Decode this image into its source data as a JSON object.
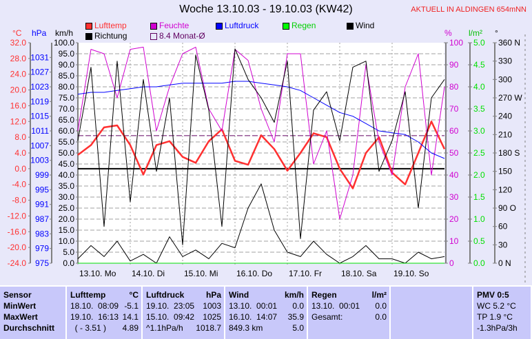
{
  "header": {
    "title": "Woche 13.10.03 - 19.10.03 (KW42)",
    "location": "AKTUELL IN ALDINGEN 654mNN"
  },
  "legend": [
    {
      "label": "Lufttemp",
      "color": "#ff3030"
    },
    {
      "label": "Feuchte",
      "color": "#d000d0"
    },
    {
      "label": "Luftdruck",
      "color": "#0000ff"
    },
    {
      "label": "Regen",
      "color": "#00ff00"
    },
    {
      "label": "Wind",
      "color": "#000000"
    },
    {
      "label": "Richtung",
      "color": "#000000"
    },
    {
      "label": "8.4 Monat-Ø",
      "color": "#600060"
    }
  ],
  "colors": {
    "temp": "#ff3030",
    "humidity": "#d000d0",
    "pressure": "#0000ff",
    "rain": "#00e000",
    "wind": "#000000",
    "grid": "#909090"
  },
  "chart_data": {
    "type": "line",
    "title": "Woche 13.10.03 - 19.10.03 (KW42)",
    "x_labels": [
      "13.10. Mo",
      "14.10. Di",
      "15.10. Mi",
      "16.10. Do",
      "17.10. Fr",
      "18.10. Sa",
      "19.10. So"
    ],
    "x_unit": "hours since 13.10. 00:00",
    "axes": {
      "temp": {
        "unit": "°C",
        "min": -24,
        "max": 32,
        "step": 4
      },
      "pressure": {
        "unit": "hPa",
        "min": 975,
        "max": 1035,
        "step": 4
      },
      "wind": {
        "unit": "km/h",
        "min": 0,
        "max": 100,
        "step": 5
      },
      "humidity": {
        "unit": "%",
        "min": 0,
        "max": 100,
        "step": 10
      },
      "rain": {
        "unit": "l/m²",
        "min": 0,
        "max": 5,
        "step": 0.5
      },
      "direction": {
        "unit": "°",
        "min": 0,
        "max": 360,
        "step": 30,
        "labels": {
          "360": "360 N",
          "270": "270 W",
          "180": "180 S",
          "90": "90  O",
          "0": "0   N"
        }
      }
    },
    "sample_interval_h": 6,
    "series": [
      {
        "name": "Lufttemp",
        "axis": "temp",
        "values": [
          3.5,
          6,
          10.5,
          11,
          6,
          -1.5,
          6,
          7,
          3,
          1.5,
          7,
          10,
          2,
          1,
          8.5,
          5,
          -0.5,
          4,
          9,
          8,
          0,
          -5,
          4,
          8,
          -1,
          -4,
          4,
          12,
          5
        ]
      },
      {
        "name": "Feuchte",
        "axis": "humidity",
        "values": [
          60,
          97,
          95,
          75,
          97,
          98,
          60,
          80,
          95,
          98,
          70,
          60,
          97,
          92,
          70,
          55,
          95,
          95,
          45,
          60,
          20,
          40,
          90,
          55,
          40,
          80,
          95,
          40,
          80
        ]
      },
      {
        "name": "Luftdruck",
        "axis": "pressure",
        "values": [
          1021,
          1021.5,
          1021.5,
          1022,
          1022.5,
          1023,
          1023,
          1023.5,
          1024,
          1024,
          1024,
          1024,
          1024.5,
          1024.5,
          1024,
          1023.5,
          1023,
          1022,
          1020,
          1018,
          1016,
          1015,
          1013,
          1011,
          1010.5,
          1010,
          1008,
          1005,
          1003.5
        ]
      },
      {
        "name": "Wind",
        "axis": "wind",
        "values": [
          2,
          8,
          3,
          10,
          1,
          4,
          0,
          12,
          3,
          6,
          2,
          9,
          7,
          25,
          36,
          15,
          5,
          3,
          10,
          4,
          0,
          3,
          8,
          2,
          2,
          0,
          5,
          2,
          3
        ]
      },
      {
        "name": "Richtung",
        "axis": "direction",
        "values": [
          200,
          320,
          60,
          330,
          100,
          300,
          150,
          270,
          30,
          340,
          250,
          60,
          350,
          300,
          270,
          230,
          330,
          40,
          250,
          280,
          200,
          320,
          330,
          150,
          200,
          280,
          90,
          270,
          300
        ]
      },
      {
        "name": "Regen",
        "axis": "rain",
        "values": [
          0,
          0,
          0,
          0,
          0,
          0,
          0,
          0,
          0,
          0,
          0,
          0,
          0,
          0,
          0,
          0,
          0,
          0,
          0,
          0,
          0,
          0,
          0,
          0,
          0,
          0,
          0,
          0,
          0
        ]
      }
    ],
    "reference_lines": [
      {
        "name": "8.4 Monat-Ø",
        "axis": "temp",
        "value": 8.4
      },
      {
        "name": "0 °C",
        "axis": "temp",
        "value": 0
      }
    ]
  },
  "table": {
    "columns": [
      {
        "h1": "Sensor",
        "h2": "",
        "rows": [
          [
            "MinWert",
            ""
          ],
          [
            "MaxWert",
            ""
          ],
          [
            "Durchschnitt",
            ""
          ]
        ]
      },
      {
        "h1": "Lufttemp",
        "h2": "°C",
        "rows": [
          [
            "18.10.  08:09",
            "-5.1"
          ],
          [
            "19.10.  16:13",
            "14.1"
          ],
          [
            "  ( - 3.51 )",
            "4.89"
          ]
        ]
      },
      {
        "h1": "Luftdruck",
        "h2": "hPa",
        "rows": [
          [
            "19.10.  23:05",
            "1003"
          ],
          [
            "15.10.  09:42",
            "1025"
          ],
          [
            "^1.1hPa/h",
            "1018.7"
          ]
        ]
      },
      {
        "h1": "Wind",
        "h2": "km/h",
        "rows": [
          [
            "13.10.  00:01",
            "0.0"
          ],
          [
            "16.10.  14:07",
            "35.9"
          ],
          [
            "849.3 km",
            "5.0"
          ]
        ]
      },
      {
        "h1": "Regen",
        "h2": "l/m²",
        "rows": [
          [
            "",
            ""
          ],
          [
            "13.10.  00:01",
            "0.0"
          ],
          [
            "Gesamt:",
            "0.0"
          ]
        ]
      },
      {
        "h1": "",
        "h2": "",
        "rows": [
          [
            "",
            ""
          ],
          [
            "",
            ""
          ],
          [
            "",
            ""
          ]
        ]
      },
      {
        "h1": "PMV 0:5",
        "h2": "",
        "rows": [
          [
            "WC 5.2 °C",
            ""
          ],
          [
            "TP 1.9 °C",
            ""
          ],
          [
            "-1.3hPa/3h",
            ""
          ]
        ]
      }
    ]
  }
}
